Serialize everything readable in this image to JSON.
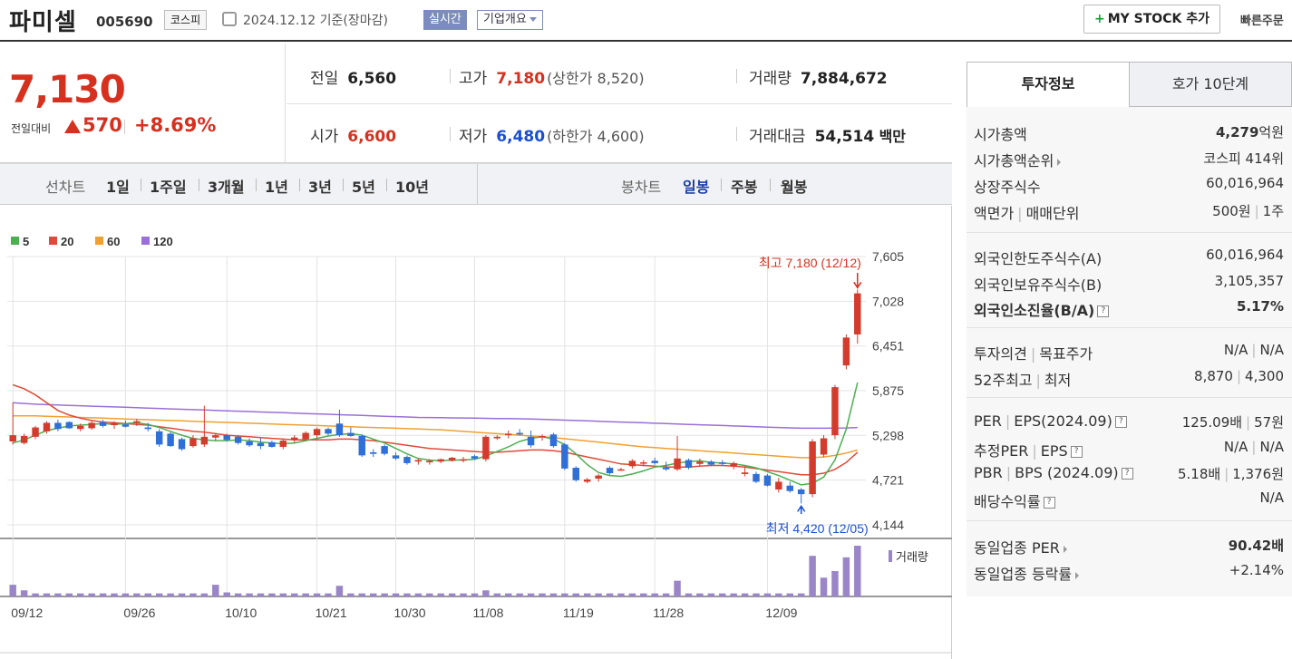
{
  "header": {
    "stock_name": "파미셀",
    "stock_code": "005690",
    "market": "코스피",
    "date": "2024.12.12 기준(장마감)",
    "realtime_label": "실시간",
    "overview_label": "기업개요",
    "mystock_label": "MY STOCK 추가",
    "quick_label": "빠른주문"
  },
  "summary": {
    "price": "7,130",
    "change_label": "전일대비",
    "change_value": "570",
    "change_pct": "+8.69%",
    "prev_label": "전일",
    "prev_value": "6,560",
    "high_label": "고가",
    "high_value": "7,180",
    "upper_limit": "(상한가 8,520)",
    "volume_label": "거래량",
    "volume_value": "7,884,672",
    "open_label": "시가",
    "open_value": "6,600",
    "low_label": "저가",
    "low_value": "6,480",
    "lower_limit": "(하한가 4,600)",
    "amount_label": "거래대금",
    "amount_value": "54,514",
    "amount_unit": "백만"
  },
  "periods": {
    "line_label": "선차트",
    "line_items": [
      "1일",
      "1주일",
      "3개월",
      "1년",
      "3년",
      "5년",
      "10년"
    ],
    "candle_label": "봉차트",
    "candle_items": [
      "일봉",
      "주봉",
      "월봉"
    ],
    "candle_selected": "일봉"
  },
  "chart_data": {
    "type": "candlestick",
    "legend": [
      {
        "name": "5",
        "color": "#4caf50"
      },
      {
        "name": "20",
        "color": "#e04a3a"
      },
      {
        "name": "60",
        "color": "#f0a030"
      },
      {
        "name": "120",
        "color": "#9a6fd8"
      }
    ],
    "y_ticks": [
      "7,605",
      "7,028",
      "6,451",
      "5,875",
      "5,298",
      "4,721",
      "4,144"
    ],
    "ylim": [
      4144,
      7605
    ],
    "x_ticks": [
      "09/12",
      "09/26",
      "10/10",
      "10/21",
      "10/30",
      "11/08",
      "11/19",
      "11/28",
      "12/09"
    ],
    "high_annotation": "최고 7,180 (12/12)",
    "low_annotation": "최저 4,420 (12/05)",
    "volume_label": "거래량",
    "candles": [
      [
        5220,
        5720,
        5180,
        5300
      ],
      [
        5200,
        5320,
        5180,
        5290
      ],
      [
        5280,
        5420,
        5250,
        5400
      ],
      [
        5350,
        5480,
        5320,
        5460
      ],
      [
        5460,
        5500,
        5350,
        5380
      ],
      [
        5470,
        5480,
        5380,
        5390
      ],
      [
        5380,
        5450,
        5350,
        5420
      ],
      [
        5390,
        5480,
        5370,
        5460
      ],
      [
        5470,
        5500,
        5400,
        5420
      ],
      [
        5430,
        5480,
        5380,
        5460
      ],
      [
        5440,
        5490,
        5400,
        5410
      ],
      [
        5460,
        5510,
        5420,
        5480
      ],
      [
        5400,
        5460,
        5350,
        5380
      ],
      [
        5350,
        5380,
        5150,
        5180
      ],
      [
        5320,
        5340,
        5150,
        5160
      ],
      [
        5250,
        5270,
        5100,
        5120
      ],
      [
        5160,
        5300,
        5140,
        5260
      ],
      [
        5180,
        5680,
        5150,
        5280
      ],
      [
        5270,
        5320,
        5230,
        5300
      ],
      [
        5300,
        5320,
        5220,
        5240
      ],
      [
        5280,
        5300,
        5180,
        5200
      ],
      [
        5220,
        5260,
        5150,
        5170
      ],
      [
        5200,
        5260,
        5120,
        5160
      ],
      [
        5210,
        5230,
        5140,
        5150
      ],
      [
        5150,
        5250,
        5120,
        5230
      ],
      [
        5240,
        5300,
        5200,
        5270
      ],
      [
        5250,
        5350,
        5230,
        5330
      ],
      [
        5300,
        5400,
        5260,
        5380
      ],
      [
        5380,
        5400,
        5300,
        5320
      ],
      [
        5450,
        5630,
        5280,
        5300
      ],
      [
        5330,
        5400,
        5280,
        5290
      ],
      [
        5290,
        5310,
        5020,
        5040
      ],
      [
        5080,
        5120,
        5020,
        5060
      ],
      [
        5160,
        5180,
        5040,
        5060
      ],
      [
        5040,
        5080,
        4980,
        5000
      ],
      [
        5020,
        5040,
        4920,
        4940
      ],
      [
        4960,
        5000,
        4920,
        4980
      ],
      [
        4950,
        4990,
        4920,
        4970
      ],
      [
        4960,
        5000,
        4940,
        4990
      ],
      [
        4970,
        5020,
        4960,
        5010
      ],
      [
        4980,
        5020,
        4950,
        4990
      ],
      [
        5030,
        5050,
        4980,
        5000
      ],
      [
        4990,
        5300,
        4960,
        5280
      ],
      [
        5260,
        5300,
        5240,
        5280
      ],
      [
        5300,
        5360,
        5260,
        5320
      ],
      [
        5330,
        5380,
        5300,
        5310
      ],
      [
        5280,
        5360,
        5140,
        5170
      ],
      [
        5280,
        5310,
        5230,
        5290
      ],
      [
        5310,
        5330,
        5140,
        5160
      ],
      [
        5180,
        5200,
        4850,
        4870
      ],
      [
        4880,
        4900,
        4700,
        4720
      ],
      [
        4700,
        4750,
        4680,
        4730
      ],
      [
        4740,
        4800,
        4700,
        4780
      ],
      [
        4880,
        4900,
        4790,
        4810
      ],
      [
        4860,
        4880,
        4840,
        4860
      ],
      [
        4900,
        4990,
        4870,
        4970
      ],
      [
        4940,
        4980,
        4900,
        4950
      ],
      [
        4970,
        5010,
        4920,
        4940
      ],
      [
        4880,
        4960,
        4840,
        4860
      ],
      [
        4860,
        5290,
        4840,
        5000
      ],
      [
        4980,
        5000,
        4860,
        4880
      ],
      [
        4930,
        5000,
        4900,
        4960
      ],
      [
        4960,
        4980,
        4900,
        4920
      ],
      [
        4950,
        4980,
        4900,
        4930
      ],
      [
        4900,
        4960,
        4860,
        4940
      ],
      [
        4800,
        4900,
        4770,
        4820
      ],
      [
        4800,
        4830,
        4680,
        4700
      ],
      [
        4780,
        4800,
        4640,
        4650
      ],
      [
        4600,
        4750,
        4560,
        4700
      ],
      [
        4650,
        4700,
        4560,
        4580
      ],
      [
        4600,
        4620,
        4420,
        4540
      ],
      [
        4540,
        5250,
        4500,
        5220
      ],
      [
        5050,
        5300,
        5020,
        5260
      ],
      [
        5300,
        5950,
        5250,
        5920
      ],
      [
        6200,
        6600,
        6150,
        6560
      ],
      [
        6600,
        7180,
        6480,
        7130
      ]
    ],
    "ma5": [
      5200,
      5240,
      5300,
      5360,
      5390,
      5420,
      5430,
      5440,
      5450,
      5440,
      5450,
      5460,
      5440,
      5400,
      5350,
      5300,
      5260,
      5240,
      5230,
      5230,
      5240,
      5230,
      5210,
      5200,
      5190,
      5200,
      5230,
      5260,
      5290,
      5310,
      5320,
      5300,
      5250,
      5200,
      5130,
      5060,
      5000,
      4980,
      4970,
      4980,
      4980,
      4990,
      5030,
      5090,
      5150,
      5220,
      5260,
      5280,
      5250,
      5180,
      5060,
      4920,
      4820,
      4780,
      4770,
      4800,
      4840,
      4890,
      4910,
      4940,
      4960,
      4970,
      4950,
      4940,
      4930,
      4910,
      4880,
      4830,
      4780,
      4720,
      4660,
      4680,
      4760,
      4980,
      5380,
      5980
    ],
    "ma20": [
      5950,
      5900,
      5820,
      5720,
      5620,
      5560,
      5520,
      5490,
      5470,
      5460,
      5450,
      5440,
      5430,
      5410,
      5390,
      5370,
      5350,
      5340,
      5320,
      5300,
      5290,
      5280,
      5270,
      5260,
      5250,
      5240,
      5240,
      5240,
      5240,
      5250,
      5250,
      5240,
      5230,
      5210,
      5190,
      5170,
      5150,
      5130,
      5120,
      5110,
      5100,
      5090,
      5080,
      5080,
      5090,
      5100,
      5110,
      5110,
      5100,
      5080,
      5050,
      5020,
      4990,
      4960,
      4930,
      4920,
      4910,
      4900,
      4890,
      4890,
      4890,
      4900,
      4910,
      4910,
      4900,
      4890,
      4870,
      4850,
      4830,
      4810,
      4790,
      4790,
      4810,
      4860,
      4950,
      5080
    ],
    "ma60": [
      5550,
      5550,
      5550,
      5545,
      5540,
      5535,
      5530,
      5525,
      5520,
      5515,
      5510,
      5505,
      5500,
      5495,
      5490,
      5485,
      5480,
      5475,
      5470,
      5465,
      5460,
      5455,
      5450,
      5445,
      5440,
      5435,
      5430,
      5425,
      5420,
      5415,
      5410,
      5405,
      5400,
      5395,
      5390,
      5385,
      5380,
      5375,
      5370,
      5360,
      5350,
      5340,
      5330,
      5320,
      5310,
      5300,
      5290,
      5280,
      5270,
      5255,
      5240,
      5225,
      5210,
      5195,
      5180,
      5165,
      5150,
      5140,
      5130,
      5120,
      5110,
      5100,
      5090,
      5080,
      5070,
      5060,
      5050,
      5040,
      5030,
      5020,
      5010,
      5010,
      5020,
      5040,
      5070,
      5110
    ],
    "ma120": [
      5720,
      5710,
      5700,
      5695,
      5690,
      5685,
      5680,
      5675,
      5670,
      5665,
      5660,
      5655,
      5650,
      5645,
      5640,
      5635,
      5630,
      5625,
      5620,
      5615,
      5610,
      5605,
      5600,
      5595,
      5590,
      5585,
      5580,
      5575,
      5570,
      5565,
      5560,
      5555,
      5550,
      5545,
      5540,
      5535,
      5530,
      5528,
      5526,
      5524,
      5522,
      5520,
      5518,
      5516,
      5514,
      5512,
      5510,
      5505,
      5500,
      5495,
      5490,
      5485,
      5480,
      5475,
      5470,
      5465,
      5460,
      5455,
      5450,
      5445,
      5440,
      5435,
      5430,
      5425,
      5420,
      5415,
      5410,
      5405,
      5400,
      5395,
      5390,
      5390,
      5390,
      5392,
      5394,
      5400
    ],
    "volume": [
      0.23,
      0.12,
      0.06,
      0.06,
      0.06,
      0.06,
      0.06,
      0.06,
      0.06,
      0.06,
      0.06,
      0.06,
      0.06,
      0.06,
      0.06,
      0.06,
      0.06,
      0.06,
      0.23,
      0.08,
      0.06,
      0.06,
      0.06,
      0.06,
      0.06,
      0.06,
      0.06,
      0.06,
      0.06,
      0.21,
      0.06,
      0.06,
      0.06,
      0.06,
      0.06,
      0.06,
      0.06,
      0.06,
      0.06,
      0.06,
      0.06,
      0.06,
      0.12,
      0.06,
      0.06,
      0.06,
      0.06,
      0.06,
      0.06,
      0.06,
      0.06,
      0.06,
      0.06,
      0.06,
      0.06,
      0.06,
      0.06,
      0.06,
      0.06,
      0.31,
      0.06,
      0.06,
      0.06,
      0.06,
      0.06,
      0.06,
      0.06,
      0.06,
      0.06,
      0.06,
      0.06,
      0.8,
      0.37,
      0.5,
      0.77,
      1.0
    ]
  },
  "side": {
    "tab_active": "투자정보",
    "tab_other": "호가 10단계",
    "market_cap_label": "시가총액",
    "market_cap_value": "4,279",
    "market_cap_unit": "억원",
    "rank_label": "시가총액순위",
    "rank_value": "코스피 414위",
    "shares_label": "상장주식수",
    "shares_value": "60,016,964",
    "par_label": "액면가",
    "unit_label": "매매단위",
    "par_value": "500원",
    "unit_value": "1주",
    "foreign_limit_label": "외국인한도주식수(A)",
    "foreign_limit_value": "60,016,964",
    "foreign_hold_label": "외국인보유주식수(B)",
    "foreign_hold_value": "3,105,357",
    "foreign_ratio_label": "외국인소진율(B/A)",
    "foreign_ratio_value": "5.17%",
    "opinion_label": "투자의견",
    "target_label": "목표주가",
    "opinion_value": "N/A",
    "target_value": "N/A",
    "high52_label": "52주최고",
    "low52_label": "최저",
    "high52_value": "8,870",
    "low52_value": "4,300",
    "per_label": "PER",
    "eps_label": "EPS(2024.09)",
    "per_value": "125.09배",
    "eps_value": "57원",
    "est_per_label": "추정PER",
    "est_eps_label": "EPS",
    "est_per_value": "N/A",
    "est_eps_value": "N/A",
    "pbr_label": "PBR",
    "bps_label": "BPS (2024.09)",
    "pbr_value": "5.18배",
    "bps_value": "1,376원",
    "div_label": "배당수익률",
    "div_value": "N/A",
    "ind_per_label": "동일업종 PER",
    "ind_per_value": "90.42배",
    "ind_chg_label": "동일업종 등락률",
    "ind_chg_value": "+2.14%"
  }
}
